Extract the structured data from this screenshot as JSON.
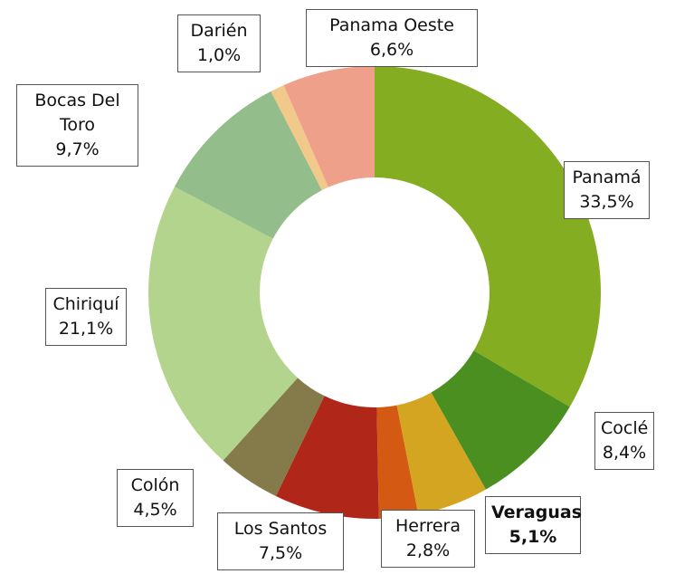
{
  "chart_data": {
    "type": "donut",
    "categories": [
      "Panamá",
      "Coclé",
      "Veraguas",
      "Herrera",
      "Los Santos",
      "Colón",
      "Chiriquí",
      "Bocas Del Toro",
      "Darién",
      "Panama Oeste"
    ],
    "values": [
      33.5,
      8.4,
      5.1,
      2.8,
      7.5,
      4.5,
      21.1,
      9.7,
      1.0,
      6.6
    ],
    "value_labels": [
      "33,5%",
      "8,4%",
      "5,1%",
      "2,8%",
      "7,5%",
      "4,5%",
      "21,1%",
      "9,7%",
      "1,0%",
      "6,6%"
    ],
    "colors": [
      "#84ad22",
      "#4a8f1f",
      "#d4a520",
      "#d45a14",
      "#b0271a",
      "#857a4a",
      "#b3d48c",
      "#93bd8a",
      "#f1c98a",
      "#eea08a"
    ]
  }
}
